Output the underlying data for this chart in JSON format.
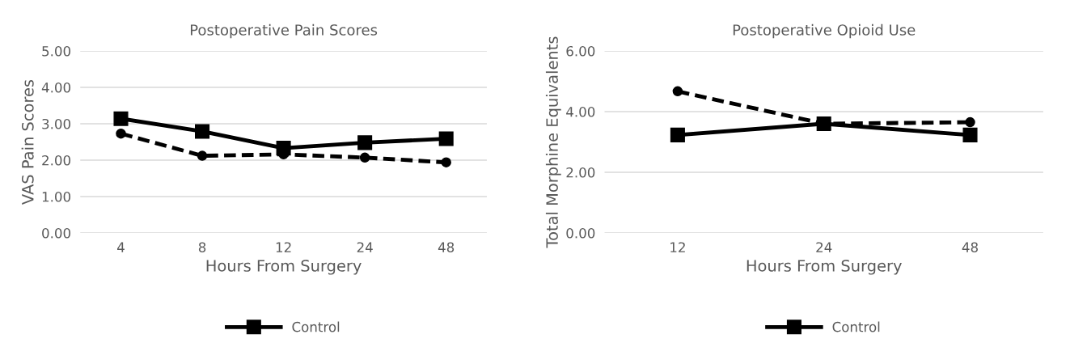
{
  "chart_data": [
    {
      "type": "line",
      "title": "Postoperative Pain Scores",
      "xlabel": "Hours From Surgery",
      "ylabel": "VAS Pain Scores",
      "categories": [
        "4",
        "8",
        "12",
        "24",
        "48"
      ],
      "series": [
        {
          "name": "Control",
          "color": "#000000",
          "marker": "square",
          "line_style": "solid",
          "values": [
            3.14,
            2.79,
            2.33,
            2.48,
            2.59
          ]
        },
        {
          "color": "#000000",
          "marker": "circle",
          "line_style": "dashed",
          "values": [
            2.73,
            2.12,
            2.16,
            2.07,
            1.94
          ]
        }
      ],
      "ylim": [
        0,
        5
      ],
      "yticks": [
        {
          "value": 0,
          "label": "0.00"
        },
        {
          "value": 1,
          "label": "1.00"
        },
        {
          "value": 2,
          "label": "2.00"
        },
        {
          "value": 3,
          "label": "3.00"
        },
        {
          "value": 4,
          "label": "4.00"
        },
        {
          "value": 5,
          "label": "5.00"
        }
      ],
      "grid": "y",
      "legend": "bottom"
    },
    {
      "type": "line",
      "title": "Postoperative Opioid Use",
      "xlabel": "Hours From Surgery",
      "ylabel": "Total Morphine Equivalents",
      "categories": [
        "12",
        "24",
        "48"
      ],
      "series": [
        {
          "name": "Control",
          "color": "#000000",
          "marker": "square",
          "line_style": "solid",
          "values": [
            3.23,
            3.6,
            3.23
          ]
        },
        {
          "color": "#000000",
          "marker": "circle",
          "line_style": "dashed",
          "values": [
            4.67,
            3.6,
            3.65
          ]
        }
      ],
      "ylim": [
        0,
        6
      ],
      "yticks": [
        {
          "value": 0,
          "label": "0.00"
        },
        {
          "value": 2,
          "label": "2.00"
        },
        {
          "value": 4,
          "label": "4.00"
        },
        {
          "value": 6,
          "label": "6.00"
        }
      ],
      "grid": "y",
      "legend": "bottom"
    }
  ]
}
